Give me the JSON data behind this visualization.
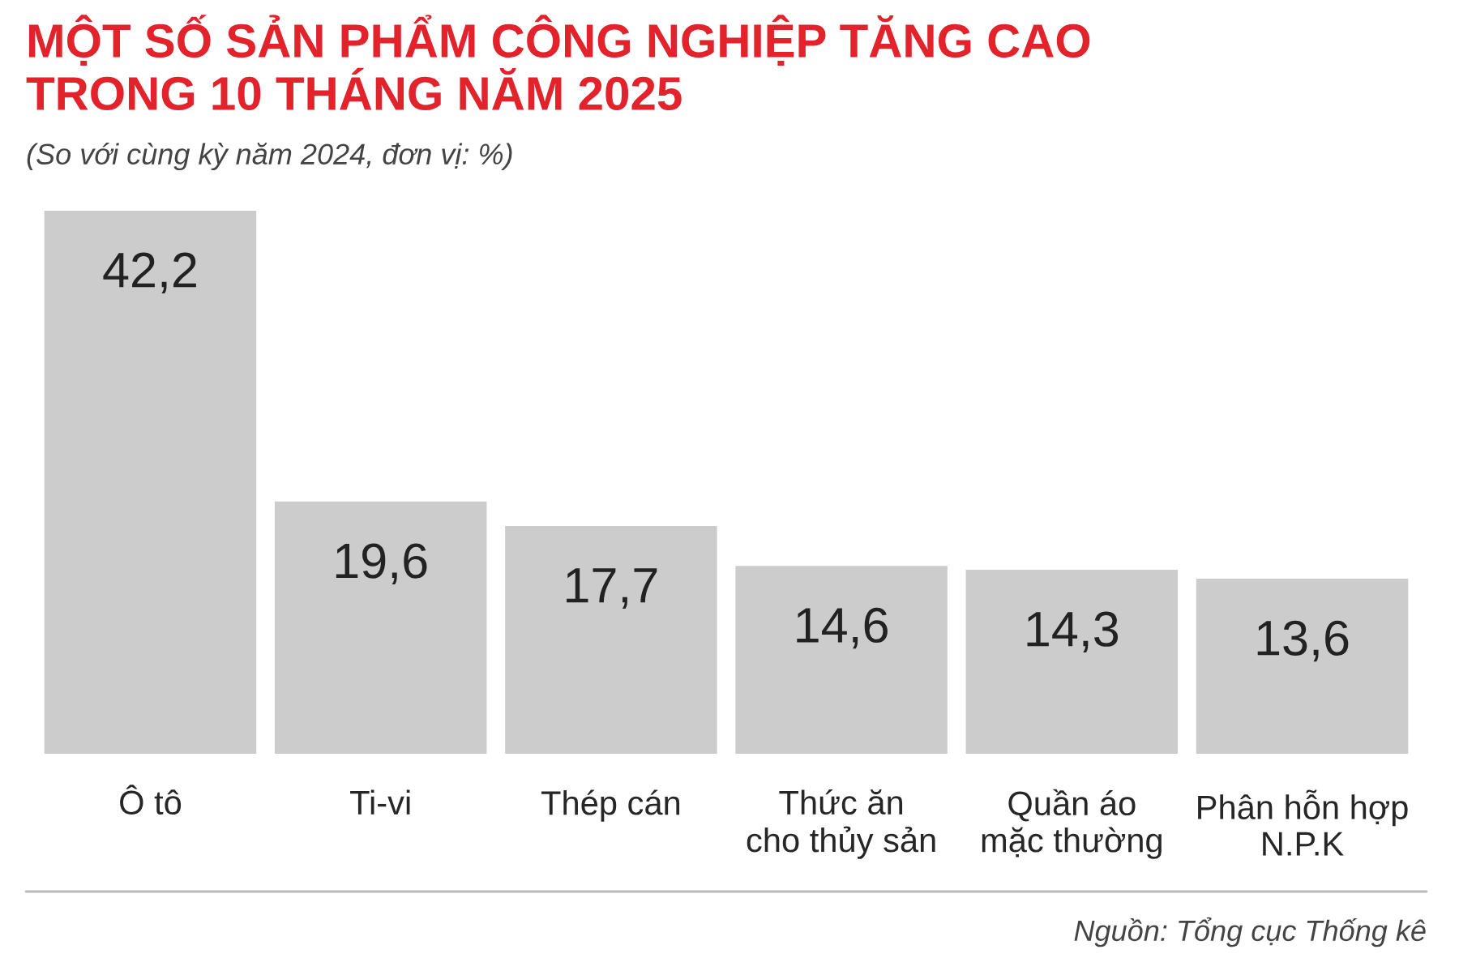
{
  "chart_data": {
    "type": "bar",
    "title": "MỘT SỐ SẢN PHẨM CÔNG NGHIỆP TĂNG CAO\nTRONG 10 THÁNG NĂM 2025",
    "subtitle": "(So với cùng kỳ năm 2024, đơn vị: %)",
    "categories": [
      "Ô tô",
      "Ti-vi",
      "Thép cán",
      "Thức ăn\ncho thủy sản",
      "Quần áo\nmặc thường",
      "Phân hỗn hợp\nN.P.K"
    ],
    "values": [
      42.2,
      19.6,
      17.7,
      14.6,
      14.3,
      13.6
    ],
    "value_labels": [
      "42,2",
      "19,6",
      "17,7",
      "14,6",
      "14,3",
      "13,6"
    ],
    "color": "#cdcccc",
    "grid": false,
    "legend": false,
    "annotations": [
      "Nguồn: Tổng cục Thống kê"
    ]
  }
}
